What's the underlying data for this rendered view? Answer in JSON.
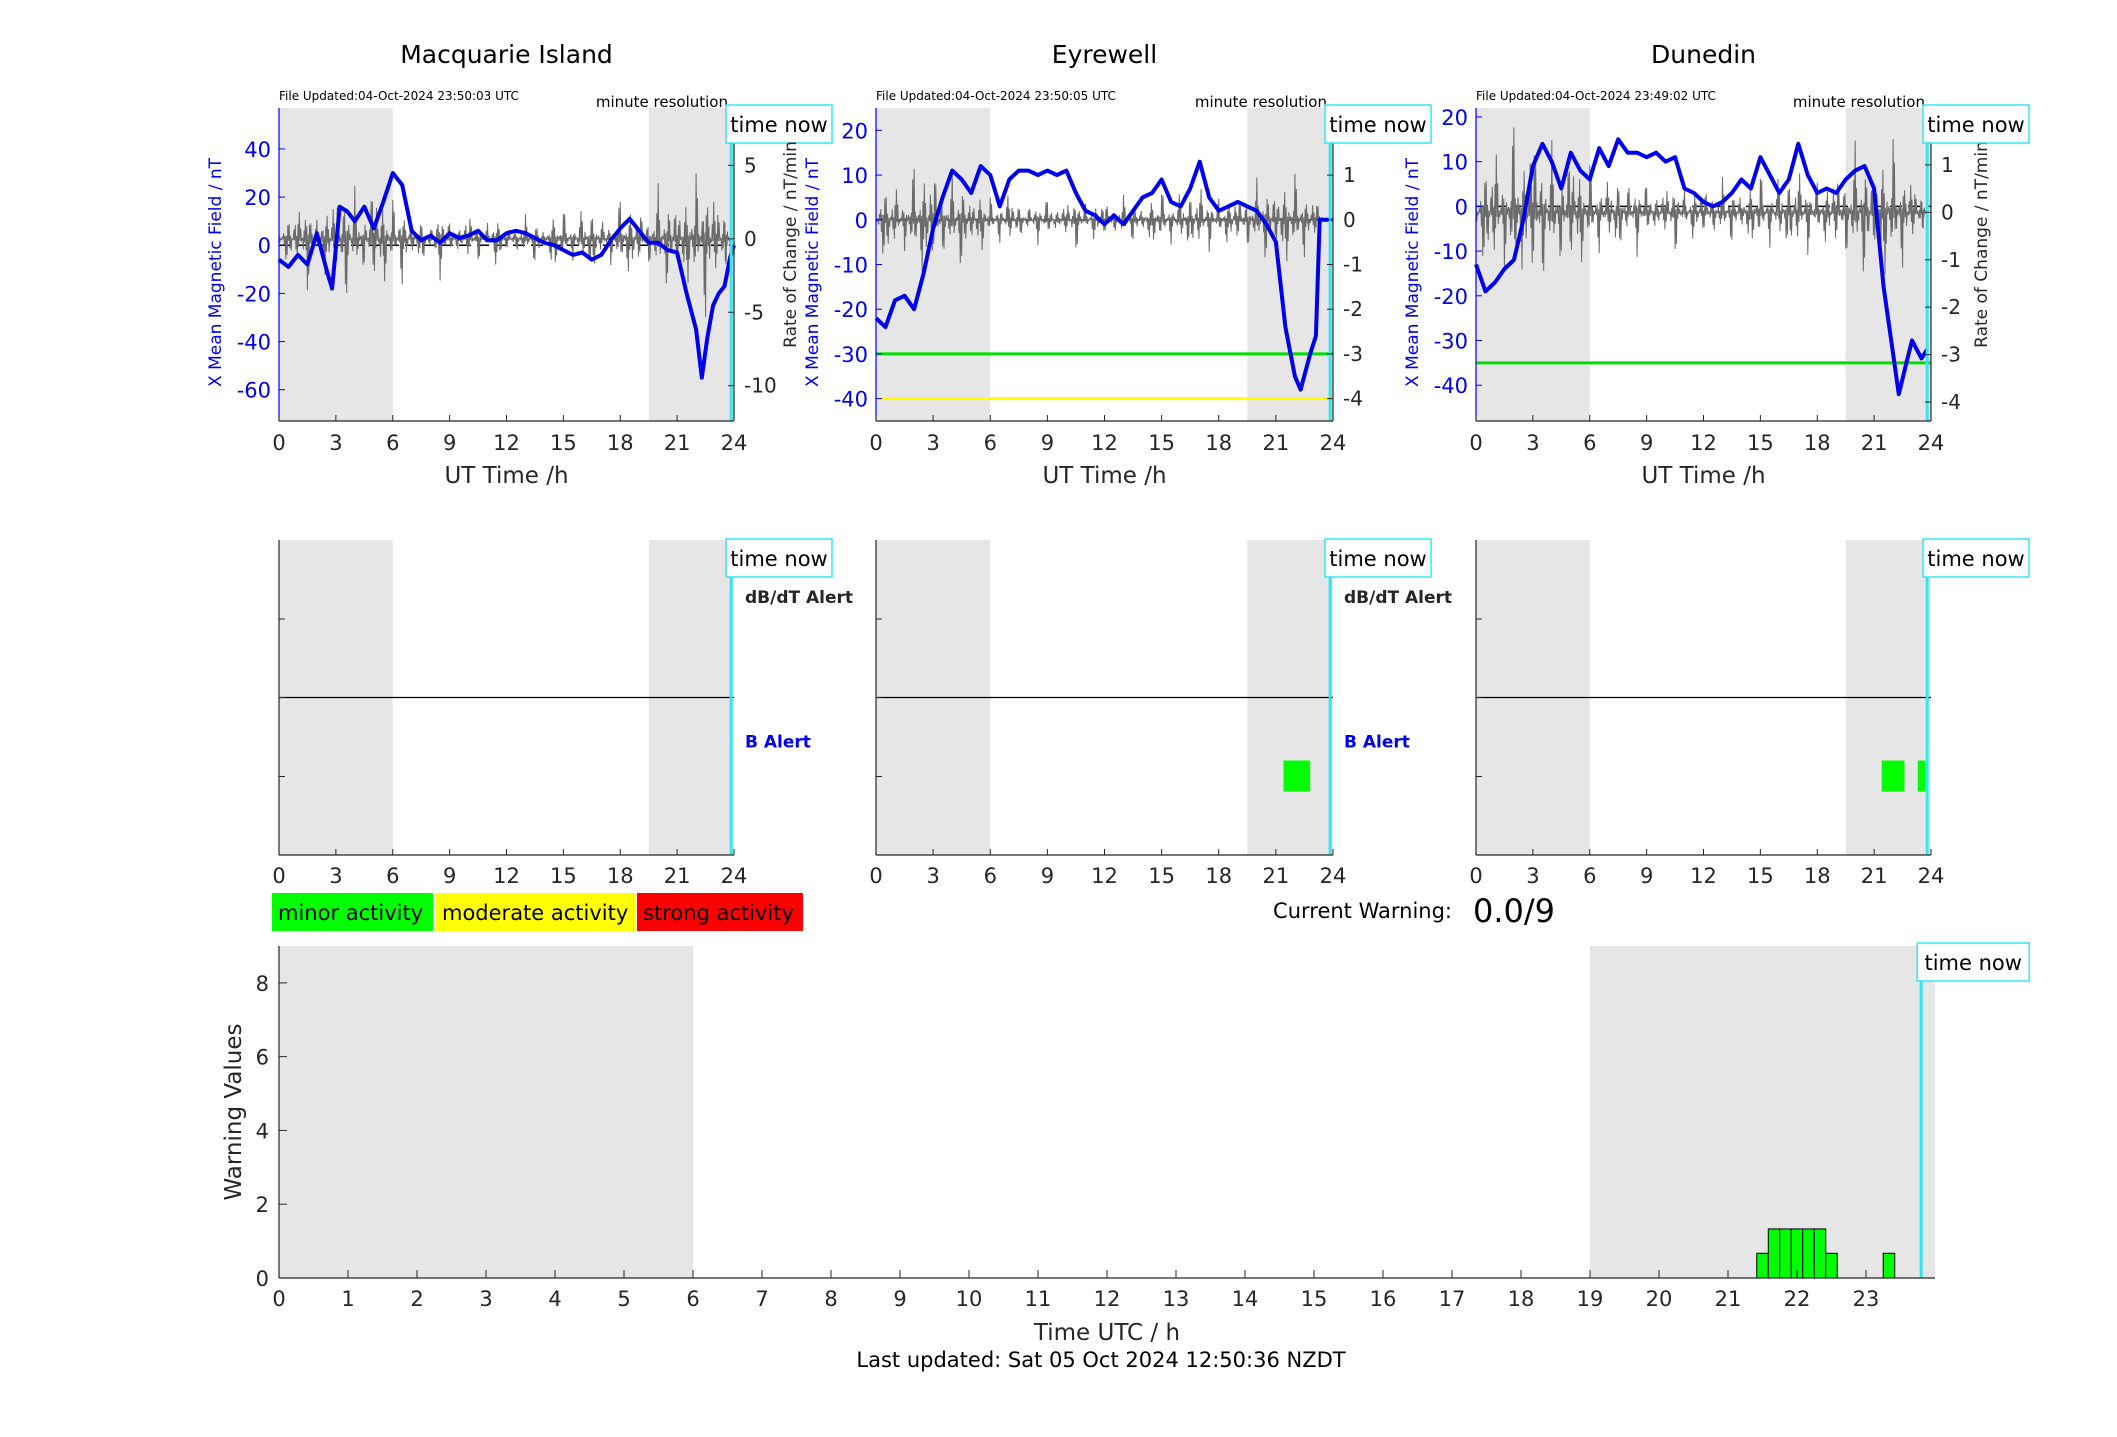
{
  "stations": [
    {
      "name": "Macquarie Island",
      "file_updated": "File Updated:04-Oct-2024 23:50:03 UTC",
      "resolution": "minute resolution",
      "time_now_label": "time now",
      "xlabel": "UT Time /h",
      "ylabel_left": "X Mean Magnetic Field / nT",
      "ylabel_right": "",
      "left_ylim": [
        -73,
        57
      ],
      "left_ticks": [
        -60,
        -40,
        -20,
        0,
        20,
        40
      ],
      "right_ylim": [
        -12.4,
        8.9
      ],
      "right_ticks": [
        -10,
        -5,
        0,
        5
      ],
      "xticks": [
        0,
        3,
        6,
        9,
        12,
        15,
        18,
        21,
        24
      ],
      "time_now": 23.85,
      "thresholds": [],
      "b_series": [
        [
          0,
          -6
        ],
        [
          0.5,
          -9
        ],
        [
          1,
          -4
        ],
        [
          1.5,
          -8
        ],
        [
          2,
          5
        ],
        [
          2.5,
          -10
        ],
        [
          2.8,
          -18
        ],
        [
          3.2,
          16
        ],
        [
          3.6,
          14
        ],
        [
          4,
          10
        ],
        [
          4.5,
          16
        ],
        [
          5,
          7
        ],
        [
          5.5,
          18
        ],
        [
          6,
          30
        ],
        [
          6.5,
          25
        ],
        [
          7,
          6
        ],
        [
          7.5,
          2
        ],
        [
          8,
          4
        ],
        [
          8.5,
          1
        ],
        [
          9,
          5
        ],
        [
          9.5,
          3
        ],
        [
          10,
          4
        ],
        [
          10.5,
          6
        ],
        [
          11,
          2
        ],
        [
          11.5,
          2
        ],
        [
          12,
          5
        ],
        [
          12.5,
          6
        ],
        [
          13,
          5
        ],
        [
          13.5,
          3
        ],
        [
          14,
          1
        ],
        [
          14.5,
          0
        ],
        [
          15,
          -2
        ],
        [
          15.5,
          -4
        ],
        [
          16,
          -3
        ],
        [
          16.5,
          -6
        ],
        [
          17,
          -4
        ],
        [
          17.5,
          2
        ],
        [
          18,
          7
        ],
        [
          18.5,
          11
        ],
        [
          19,
          6
        ],
        [
          19.5,
          1
        ],
        [
          20,
          1
        ],
        [
          20.5,
          -2
        ],
        [
          21,
          -3
        ],
        [
          21.5,
          -20
        ],
        [
          22,
          -35
        ],
        [
          22.3,
          -55
        ],
        [
          22.6,
          -38
        ],
        [
          22.9,
          -25
        ],
        [
          23.2,
          -20
        ],
        [
          23.5,
          -17
        ],
        [
          23.8,
          -5
        ],
        [
          24,
          0
        ]
      ],
      "dbdt_series": [
        [
          0,
          0.4
        ],
        [
          0.5,
          -1.2
        ],
        [
          1,
          1.5
        ],
        [
          1.5,
          -2.0
        ],
        [
          2,
          0.8
        ],
        [
          2.5,
          -1.8
        ],
        [
          3,
          2.3
        ],
        [
          3.5,
          -2.6
        ],
        [
          4,
          1.9
        ],
        [
          4.5,
          -1.4
        ],
        [
          5,
          2.5
        ],
        [
          5.5,
          -2.2
        ],
        [
          6,
          1.6
        ],
        [
          6.5,
          -1.8
        ],
        [
          7,
          0.9
        ],
        [
          7.5,
          -1.1
        ],
        [
          8,
          0.6
        ],
        [
          8.5,
          -1.5
        ],
        [
          9,
          0.8
        ],
        [
          9.5,
          -0.7
        ],
        [
          10,
          1.1
        ],
        [
          10.5,
          -0.9
        ],
        [
          11,
          0.6
        ],
        [
          11.5,
          -1.2
        ],
        [
          12,
          0.7
        ],
        [
          12.5,
          -0.6
        ],
        [
          13,
          0.9
        ],
        [
          13.5,
          -1.0
        ],
        [
          14,
          0.5
        ],
        [
          14.5,
          -1.4
        ],
        [
          15,
          1.2
        ],
        [
          15.5,
          -0.8
        ],
        [
          16,
          1.3
        ],
        [
          16.5,
          -1.6
        ],
        [
          17,
          0.9
        ],
        [
          17.5,
          -1.0
        ],
        [
          18,
          1.6
        ],
        [
          18.5,
          -1.8
        ],
        [
          19,
          1.4
        ],
        [
          19.5,
          -1.2
        ],
        [
          20,
          2.0
        ],
        [
          20.5,
          -2.2
        ],
        [
          21,
          1.9
        ],
        [
          21.5,
          -2.4
        ],
        [
          22,
          2.6
        ],
        [
          22.5,
          -3.2
        ],
        [
          23,
          2.2
        ],
        [
          23.5,
          -1.5
        ],
        [
          23.8,
          0.5
        ]
      ],
      "alert_label_db": "dB/dT Alert",
      "alert_label_b": "B Alert",
      "alert_blocks": []
    },
    {
      "name": "Eyrewell",
      "file_updated": "File Updated:04-Oct-2024 23:50:05 UTC",
      "resolution": "minute resolution",
      "time_now_label": "time now",
      "xlabel": "UT Time /h",
      "ylabel_left": "X Mean Magnetic Field / nT",
      "ylabel_right": "Rate of Change / nT/min",
      "left_ylim": [
        -45,
        25
      ],
      "left_ticks": [
        -40,
        -30,
        -20,
        -10,
        0,
        10,
        20
      ],
      "right_ylim": [
        -4.5,
        2.5
      ],
      "right_ticks": [
        -4,
        -3,
        -2,
        -1,
        0,
        1,
        2
      ],
      "xticks": [
        0,
        3,
        6,
        9,
        12,
        15,
        18,
        21,
        24
      ],
      "time_now": 23.85,
      "thresholds": [
        {
          "value": -30,
          "color": "#00e000"
        },
        {
          "value": -40,
          "color": "#ffff00"
        }
      ],
      "b_series": [
        [
          0,
          -22
        ],
        [
          0.5,
          -24
        ],
        [
          1,
          -18
        ],
        [
          1.5,
          -17
        ],
        [
          2,
          -20
        ],
        [
          2.5,
          -12
        ],
        [
          3,
          -2
        ],
        [
          3.5,
          5
        ],
        [
          4,
          11
        ],
        [
          4.5,
          9
        ],
        [
          5,
          6
        ],
        [
          5.5,
          12
        ],
        [
          6,
          10
        ],
        [
          6.5,
          3
        ],
        [
          7,
          9
        ],
        [
          7.5,
          11
        ],
        [
          8,
          11
        ],
        [
          8.5,
          10
        ],
        [
          9,
          11
        ],
        [
          9.5,
          10
        ],
        [
          10,
          11
        ],
        [
          10.5,
          6
        ],
        [
          11,
          2
        ],
        [
          11.5,
          1
        ],
        [
          12,
          -1
        ],
        [
          12.5,
          1
        ],
        [
          13,
          -1
        ],
        [
          13.5,
          2
        ],
        [
          14,
          5
        ],
        [
          14.5,
          6
        ],
        [
          15,
          9
        ],
        [
          15.5,
          4
        ],
        [
          16,
          3
        ],
        [
          16.5,
          7
        ],
        [
          17,
          13
        ],
        [
          17.5,
          5
        ],
        [
          18,
          2
        ],
        [
          18.5,
          3
        ],
        [
          19,
          4
        ],
        [
          19.5,
          3
        ],
        [
          20,
          2
        ],
        [
          20.5,
          -1
        ],
        [
          21,
          -5
        ],
        [
          21.5,
          -24
        ],
        [
          22,
          -35
        ],
        [
          22.3,
          -38
        ],
        [
          22.8,
          -30
        ],
        [
          23.1,
          -26
        ],
        [
          23.3,
          0
        ],
        [
          24,
          0
        ]
      ],
      "dbdt_series": [
        [
          0,
          0.1
        ],
        [
          0.5,
          -0.6
        ],
        [
          1,
          0.5
        ],
        [
          1.5,
          -0.4
        ],
        [
          2,
          0.7
        ],
        [
          2.5,
          -0.9
        ],
        [
          3,
          0.8
        ],
        [
          3.5,
          -0.5
        ],
        [
          4,
          0.6
        ],
        [
          4.5,
          -0.7
        ],
        [
          5,
          0.4
        ],
        [
          5.5,
          -0.5
        ],
        [
          6,
          0.3
        ],
        [
          6.5,
          -0.3
        ],
        [
          7,
          0.4
        ],
        [
          7.5,
          -0.3
        ],
        [
          8,
          0.2
        ],
        [
          8.5,
          -0.3
        ],
        [
          9,
          0.3
        ],
        [
          9.5,
          -0.2
        ],
        [
          10,
          0.3
        ],
        [
          10.5,
          -0.4
        ],
        [
          11,
          0.2
        ],
        [
          11.5,
          -0.3
        ],
        [
          12,
          0.3
        ],
        [
          12.5,
          -0.2
        ],
        [
          13,
          0.3
        ],
        [
          13.5,
          -0.3
        ],
        [
          14,
          0.2
        ],
        [
          14.5,
          -0.4
        ],
        [
          15,
          0.4
        ],
        [
          15.5,
          -0.3
        ],
        [
          16,
          0.4
        ],
        [
          16.5,
          -0.5
        ],
        [
          17,
          0.5
        ],
        [
          17.5,
          -0.4
        ],
        [
          18,
          0.3
        ],
        [
          18.5,
          -0.4
        ],
        [
          19,
          0.4
        ],
        [
          19.5,
          -0.4
        ],
        [
          20,
          0.5
        ],
        [
          20.5,
          -0.6
        ],
        [
          21,
          0.5
        ],
        [
          21.5,
          -0.7
        ],
        [
          22,
          0.6
        ],
        [
          22.5,
          -0.5
        ],
        [
          23,
          0.3
        ],
        [
          23.5,
          0
        ],
        [
          24,
          0
        ]
      ],
      "alert_label_db": "dB/dT Alert",
      "alert_label_b": "B Alert",
      "alert_blocks": [
        [
          21.4,
          22.8
        ]
      ]
    },
    {
      "name": "Dunedin",
      "file_updated": "File Updated:04-Oct-2024 23:49:02 UTC",
      "resolution": "minute resolution",
      "time_now_label": "time now",
      "xlabel": "UT Time /h",
      "ylabel_left": "X Mean Magnetic Field / nT",
      "ylabel_right": "Rate of Change / nT/min",
      "left_ylim": [
        -48,
        22
      ],
      "left_ticks": [
        -40,
        -30,
        -20,
        -10,
        0,
        10,
        20
      ],
      "right_ylim": [
        -4.4,
        2.2
      ],
      "right_ticks": [
        -4,
        -3,
        -2,
        -1,
        0,
        1,
        2
      ],
      "xticks": [
        0,
        3,
        6,
        9,
        12,
        15,
        18,
        21,
        24
      ],
      "time_now": 23.8,
      "thresholds": [
        {
          "value": -35,
          "color": "#00e000"
        }
      ],
      "b_series": [
        [
          0,
          -13
        ],
        [
          0.5,
          -19
        ],
        [
          1,
          -17
        ],
        [
          1.5,
          -14
        ],
        [
          2,
          -12
        ],
        [
          2.5,
          -3
        ],
        [
          3,
          9
        ],
        [
          3.5,
          14
        ],
        [
          4,
          10
        ],
        [
          4.5,
          4
        ],
        [
          5,
          12
        ],
        [
          5.5,
          8
        ],
        [
          6,
          6
        ],
        [
          6.5,
          13
        ],
        [
          7,
          9
        ],
        [
          7.5,
          15
        ],
        [
          8,
          12
        ],
        [
          8.5,
          12
        ],
        [
          9,
          11
        ],
        [
          9.5,
          12
        ],
        [
          10,
          10
        ],
        [
          10.5,
          11
        ],
        [
          11,
          4
        ],
        [
          11.5,
          3
        ],
        [
          12,
          1
        ],
        [
          12.5,
          0
        ],
        [
          13,
          1
        ],
        [
          13.5,
          3
        ],
        [
          14,
          6
        ],
        [
          14.5,
          4
        ],
        [
          15,
          11
        ],
        [
          15.5,
          7
        ],
        [
          16,
          3
        ],
        [
          16.5,
          6
        ],
        [
          17,
          14
        ],
        [
          17.5,
          7
        ],
        [
          18,
          3
        ],
        [
          18.5,
          4
        ],
        [
          19,
          3
        ],
        [
          19.5,
          6
        ],
        [
          20,
          8
        ],
        [
          20.5,
          9
        ],
        [
          21,
          4
        ],
        [
          21.5,
          -18
        ],
        [
          22,
          -33
        ],
        [
          22.3,
          -42
        ],
        [
          22.7,
          -35
        ],
        [
          23,
          -30
        ],
        [
          23.5,
          -34
        ],
        [
          23.8,
          -32
        ]
      ],
      "dbdt_series": [
        [
          0,
          0.3
        ],
        [
          0.5,
          -0.8
        ],
        [
          1,
          0.9
        ],
        [
          1.5,
          -0.7
        ],
        [
          2,
          1.1
        ],
        [
          2.5,
          -1.0
        ],
        [
          3,
          1.2
        ],
        [
          3.5,
          -0.9
        ],
        [
          4,
          0.8
        ],
        [
          4.5,
          -0.7
        ],
        [
          5,
          0.9
        ],
        [
          5.5,
          -0.8
        ],
        [
          6,
          0.6
        ],
        [
          6.5,
          -0.5
        ],
        [
          7,
          0.5
        ],
        [
          7.5,
          -0.6
        ],
        [
          8,
          0.4
        ],
        [
          8.5,
          -0.5
        ],
        [
          9,
          0.4
        ],
        [
          9.5,
          -0.3
        ],
        [
          10,
          0.4
        ],
        [
          10.5,
          -0.5
        ],
        [
          11,
          0.3
        ],
        [
          11.5,
          -0.4
        ],
        [
          12,
          0.4
        ],
        [
          12.5,
          -0.3
        ],
        [
          13,
          0.4
        ],
        [
          13.5,
          -0.4
        ],
        [
          14,
          0.3
        ],
        [
          14.5,
          -0.5
        ],
        [
          15,
          0.5
        ],
        [
          15.5,
          -0.4
        ],
        [
          16,
          0.5
        ],
        [
          16.5,
          -0.6
        ],
        [
          17,
          0.6
        ],
        [
          17.5,
          -0.5
        ],
        [
          18,
          0.4
        ],
        [
          18.5,
          -0.5
        ],
        [
          19,
          0.6
        ],
        [
          19.5,
          -0.6
        ],
        [
          20,
          0.8
        ],
        [
          20.5,
          -0.9
        ],
        [
          21,
          0.7
        ],
        [
          21.5,
          -1.0
        ],
        [
          22,
          0.9
        ],
        [
          22.5,
          -0.7
        ],
        [
          23,
          0.5
        ],
        [
          23.5,
          -0.3
        ],
        [
          23.8,
          0.1
        ]
      ],
      "alert_label_db": "",
      "alert_label_b": "",
      "alert_blocks": [
        [
          21.4,
          22.6
        ],
        [
          23.3,
          23.7
        ]
      ]
    }
  ],
  "legend": [
    {
      "label": "minor activity",
      "color": "#00ff00"
    },
    {
      "label": "moderate activity",
      "color": "#ffff00"
    },
    {
      "label": "strong activity",
      "color": "#ff0000"
    }
  ],
  "current_warning_label": "Current Warning:",
  "current_warning_value": "0.0/9",
  "chart_data": {
    "type": "bar",
    "title": "",
    "xlabel": "Time UTC / h",
    "ylabel": "Warning Values",
    "xlim": [
      0,
      24
    ],
    "ylim": [
      0,
      9
    ],
    "xticks": [
      0,
      1,
      2,
      3,
      4,
      5,
      6,
      7,
      8,
      9,
      10,
      11,
      12,
      13,
      14,
      15,
      16,
      17,
      18,
      19,
      20,
      21,
      22,
      23
    ],
    "yticks": [
      0,
      2,
      4,
      6,
      8
    ],
    "night_bands": [
      [
        0,
        6
      ],
      [
        19,
        24
      ]
    ],
    "time_now": 23.8,
    "time_now_label": "time now",
    "bar_color": "#00ff00",
    "bars": [
      {
        "x": 21.5,
        "value": 0.67
      },
      {
        "x": 21.667,
        "value": 1.33
      },
      {
        "x": 21.833,
        "value": 1.33
      },
      {
        "x": 22.0,
        "value": 1.33
      },
      {
        "x": 22.167,
        "value": 1.33
      },
      {
        "x": 22.333,
        "value": 1.33
      },
      {
        "x": 22.5,
        "value": 0.67
      },
      {
        "x": 23.333,
        "value": 0.67
      }
    ]
  },
  "footer": "Last updated: Sat 05 Oct 2024 12:50:36 NZDT"
}
